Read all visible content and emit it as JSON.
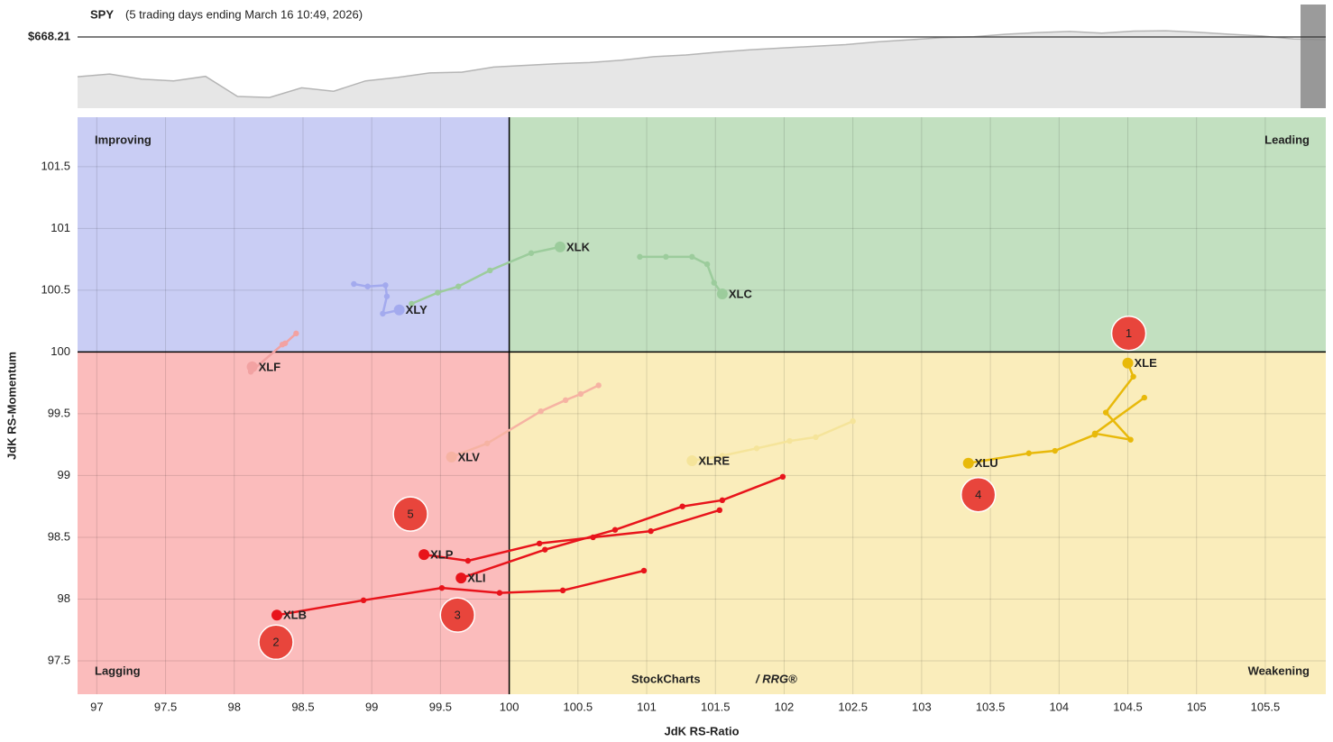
{
  "chart_data": [
    {
      "type": "area",
      "title": "SPY",
      "subtitle": "(5 trading days ending March 16 10:49, 2026)",
      "values": [
        656.7,
        657.5,
        656.0,
        655.5,
        656.8,
        651.0,
        650.7,
        653.5,
        652.5,
        655.5,
        656.5,
        657.8,
        658.0,
        659.5,
        660.0,
        660.5,
        660.8,
        661.5,
        662.5,
        663.0,
        663.8,
        664.5,
        665.0,
        665.5,
        666.0,
        666.8,
        667.4,
        668.0,
        668.3,
        669.0,
        669.5,
        669.8,
        669.3,
        669.9,
        670.0,
        669.6,
        669.0,
        668.5,
        667.6,
        667.4
      ],
      "ylim": [
        647.6,
        677.6
      ],
      "yticks": [
        {
          "value": 668.21,
          "label": "$668.21"
        }
      ],
      "color": "#b5b5b5"
    },
    {
      "type": "rrg",
      "xlabel": "JdK RS-Ratio",
      "ylabel": "JdK RS-Momentum",
      "xlim": [
        96.86,
        105.94
      ],
      "ylim": [
        97.23,
        101.9
      ],
      "xticks": [
        97,
        97.5,
        98,
        98.5,
        99,
        99.5,
        100,
        100.5,
        101,
        101.5,
        102,
        102.5,
        103,
        103.5,
        104,
        104.5,
        105,
        105.5
      ],
      "yticks": [
        97.5,
        98,
        98.5,
        99,
        99.5,
        100,
        100.5,
        101,
        101.5
      ],
      "grid": true,
      "center": [
        100,
        100
      ],
      "quadrants": [
        {
          "name": "Improving",
          "color": "#c9cdf4",
          "text_color": "#3a4bd0"
        },
        {
          "name": "Leading",
          "color": "#c2e0c0",
          "text_color": "#1e7b1e"
        },
        {
          "name": "Lagging",
          "color": "#fbbcbc",
          "text_color": "#e8141b"
        },
        {
          "name": "Weakening",
          "color": "#faedbb",
          "text_color": "#e8b90a"
        }
      ],
      "watermark": [
        "StockCharts",
        "/ RRG®"
      ],
      "series": [
        {
          "name": "XLK",
          "color": "#9ccc9c",
          "label_color": "#9ccc9c",
          "x": [
            99.29,
            99.48,
            99.63,
            99.86,
            100.16,
            100.37
          ],
          "y": [
            100.39,
            100.48,
            100.53,
            100.66,
            100.8,
            100.85
          ]
        },
        {
          "name": "XLC",
          "color": "#9ccc9c",
          "label_color": "#9ccc9c",
          "x": [
            100.95,
            101.14,
            101.33,
            101.44,
            101.49,
            101.55
          ],
          "y": [
            100.77,
            100.77,
            100.77,
            100.71,
            100.56,
            100.47
          ]
        },
        {
          "name": "XLY",
          "color": "#a3aaee",
          "label_color": "#a3aaee",
          "x": [
            98.87,
            98.97,
            99.1,
            99.11,
            99.08,
            99.2
          ],
          "y": [
            100.55,
            100.53,
            100.54,
            100.45,
            100.31,
            100.34
          ]
        },
        {
          "name": "XLF",
          "color": "#f2a2a2",
          "label_color": "#f2a2a2",
          "x": [
            98.45,
            98.37,
            98.35,
            98.12,
            98.13
          ],
          "y": [
            100.15,
            100.07,
            100.06,
            99.84,
            99.88
          ]
        },
        {
          "name": "XLV",
          "color": "#f6b3a3",
          "label_color": "#f6b3a3",
          "x": [
            100.65,
            100.52,
            100.41,
            100.23,
            99.84,
            99.58
          ],
          "y": [
            99.73,
            99.66,
            99.61,
            99.52,
            99.26,
            99.15
          ]
        },
        {
          "name": "XLRE",
          "color": "#f5e49a",
          "label_color": "#ebd98a",
          "x": [
            102.5,
            102.23,
            102.04,
            101.8,
            101.55,
            101.33
          ],
          "y": [
            99.44,
            99.31,
            99.28,
            99.22,
            99.16,
            99.12
          ]
        },
        {
          "name": "XLE",
          "color": "#e8b90a",
          "label_color": "#000000",
          "callout": "1",
          "x": [
            104.62,
            104.26,
            104.52,
            104.34,
            104.54,
            104.5
          ],
          "y": [
            99.63,
            99.34,
            99.29,
            99.51,
            99.8,
            99.91
          ]
        },
        {
          "name": "XLU",
          "color": "#e8b90a",
          "label_color": "#000000",
          "callout": "4",
          "x": [
            104.26,
            103.97,
            103.78,
            103.34
          ],
          "y": [
            99.33,
            99.2,
            99.18,
            99.1
          ]
        },
        {
          "name": "XLB",
          "color": "#e8141b",
          "label_color": "#000000",
          "callout": "2",
          "x": [
            100.98,
            100.39,
            99.93,
            99.51,
            98.94,
            98.31
          ],
          "y": [
            98.23,
            98.07,
            98.05,
            98.09,
            97.99,
            97.87
          ]
        },
        {
          "name": "XLI",
          "color": "#e8141b",
          "label_color": "#000000",
          "callout": "3",
          "x": [
            101.99,
            101.55,
            101.26,
            100.77,
            100.26,
            99.65
          ],
          "y": [
            98.99,
            98.8,
            98.75,
            98.56,
            98.4,
            98.17
          ]
        },
        {
          "name": "XLP",
          "color": "#e8141b",
          "label_color": "#000000",
          "callout": "5",
          "x": [
            101.53,
            101.03,
            100.61,
            100.22,
            99.7,
            99.38
          ],
          "y": [
            98.72,
            98.55,
            98.5,
            98.45,
            98.31,
            98.36
          ]
        }
      ]
    }
  ]
}
